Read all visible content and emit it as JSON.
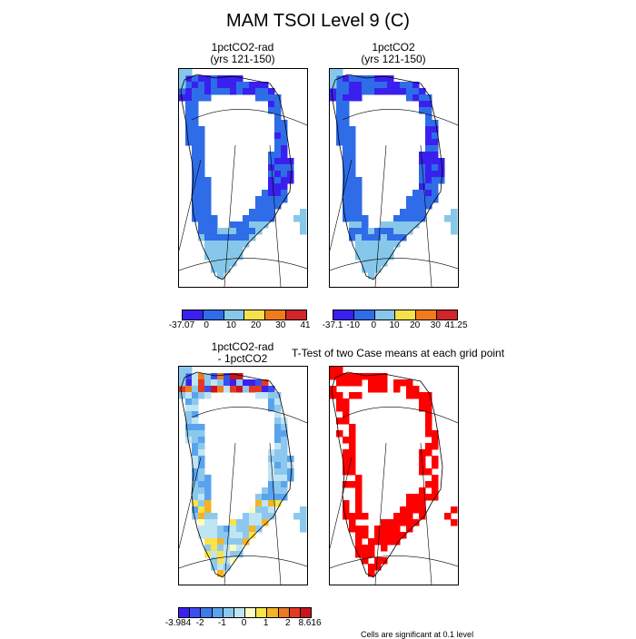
{
  "title": "MAM TSOI Level 9 (C)",
  "panels": [
    {
      "id": "p1",
      "title": "1pctCO2-rad\n(yrs 121-150)",
      "mode": "diverging"
    },
    {
      "id": "p2",
      "title": "1pctCO2\n(yrs 121-150)",
      "mode": "diverging"
    },
    {
      "id": "p3",
      "title": "1pctCO2-rad\n- 1pctCO2",
      "mode": "difference"
    },
    {
      "id": "p4",
      "title": "T-Test of two Case means at each grid point",
      "mode": "ttest"
    }
  ],
  "colorbars": [
    {
      "id": "cb1",
      "colors": [
        "#3a20ee",
        "#2f6ce8",
        "#86c7ea",
        "#f5e14a",
        "#f07b1c",
        "#d0262a"
      ],
      "labels": [
        "-37.07",
        "0",
        "10",
        "20",
        "30",
        "41"
      ]
    },
    {
      "id": "cb2",
      "colors": [
        "#3a20ee",
        "#2f6ce8",
        "#86c7ea",
        "#f5e14a",
        "#f07b1c",
        "#d0262a"
      ],
      "labels": [
        "-37.1",
        "-10",
        "0",
        "10",
        "20",
        "30",
        "41.25"
      ]
    },
    {
      "id": "cb3",
      "colors": [
        "#3a20ee",
        "#3c4ef0",
        "#3e7ae8",
        "#5aa3ec",
        "#8cc8ee",
        "#bfe4f4",
        "#fffcc0",
        "#f8e34a",
        "#f4b324",
        "#ee7820",
        "#e23a22",
        "#c8141e"
      ],
      "labels": [
        "-3.984",
        "-2",
        "-1",
        "0",
        "1",
        "2",
        "8.616"
      ]
    }
  ],
  "note": "Cells are significant at 0.1 level",
  "map_colors": {
    "ice": "#ffffff",
    "coast": "#000000",
    "grid": "#000000",
    "significant": "#ff0000"
  }
}
